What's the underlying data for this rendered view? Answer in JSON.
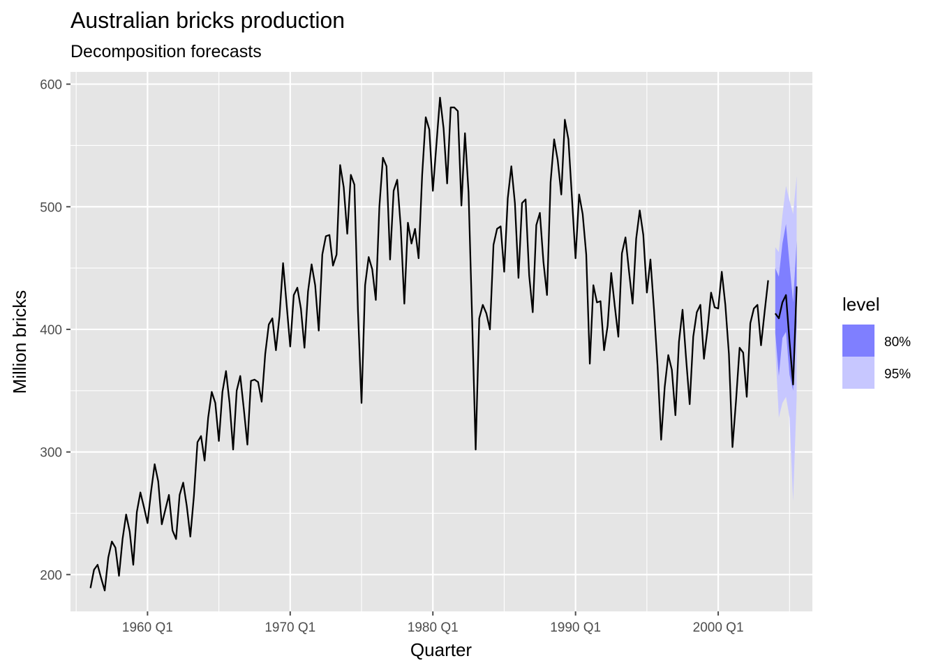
{
  "colors": {
    "panel": "#e5e5e5",
    "grid_major": "#ffffff",
    "line": "#000000",
    "band80": "#7f7fff",
    "band95": "#c7c7ff",
    "tick": "#4d4d4d"
  },
  "chart_data": {
    "type": "line",
    "title": "Australian bricks production",
    "subtitle": "Decomposition forecasts",
    "xlabel": "Quarter",
    "ylabel": "Million bricks",
    "xlim": [
      1954.6,
      2006.6
    ],
    "ylim": [
      170,
      610
    ],
    "x_ticks": [
      {
        "value": 1960,
        "label": "1960 Q1"
      },
      {
        "value": 1970,
        "label": "1970 Q1"
      },
      {
        "value": 1980,
        "label": "1980 Q1"
      },
      {
        "value": 1990,
        "label": "1990 Q1"
      },
      {
        "value": 2000,
        "label": "2000 Q1"
      }
    ],
    "y_ticks": [
      200,
      300,
      400,
      500,
      600
    ],
    "grid": true,
    "legend": {
      "title": "level",
      "position": "right",
      "items": [
        {
          "label": "80%",
          "color": "#7f7fff"
        },
        {
          "label": "95%",
          "color": "#c7c7ff"
        }
      ]
    },
    "series": [
      {
        "name": "",
        "start": 1956.0,
        "step": 0.25,
        "values": [
          189,
          204,
          208,
          197,
          187,
          214,
          227,
          222,
          199,
          229,
          249,
          235,
          208,
          251,
          267,
          255,
          242,
          268,
          290,
          276,
          241,
          253,
          265,
          236,
          229,
          265,
          275,
          256,
          231,
          264,
          308,
          313,
          293,
          328,
          349,
          340,
          309,
          349,
          366,
          340,
          302,
          350,
          362,
          335,
          306,
          358,
          359,
          357,
          341,
          380,
          404,
          409,
          383,
          411,
          454,
          420,
          386,
          428,
          434,
          417,
          385,
          431,
          453,
          436,
          399,
          461,
          476,
          477,
          452,
          461,
          534,
          516,
          478,
          526,
          518,
          415,
          340,
          436,
          459,
          449,
          424,
          500,
          540,
          533,
          457,
          513,
          522,
          483,
          421,
          487,
          470,
          482,
          458,
          526,
          573,
          563,
          513,
          551,
          589,
          564,
          519,
          581,
          581,
          578,
          501,
          560,
          512,
          409,
          302,
          409,
          420,
          413,
          400,
          469,
          482,
          484,
          447,
          507,
          533,
          503,
          442,
          503,
          506,
          444,
          414,
          485,
          495,
          455,
          428,
          520,
          555,
          538,
          510,
          571,
          555,
          507,
          458,
          510,
          494,
          461,
          372,
          436,
          422,
          423,
          383,
          403,
          446,
          419,
          394,
          462,
          475,
          447,
          421,
          474,
          497,
          477,
          430,
          457,
          416,
          370,
          310,
          353,
          379,
          367,
          330,
          390,
          416,
          376,
          339,
          394,
          414,
          420,
          376,
          400,
          430,
          418,
          417,
          447,
          420,
          380,
          304,
          342,
          385,
          381,
          345,
          405,
          417,
          420,
          387,
          414,
          440
        ]
      }
    ],
    "forecast": {
      "start": 2004.0,
      "step": 0.25,
      "mean": [
        413,
        409,
        422,
        428,
        390,
        355,
        435
      ],
      "lo80": [
        397,
        362,
        393,
        398,
        363,
        350,
        406
      ],
      "hi80": [
        450,
        443,
        470,
        486,
        453,
        422,
        472
      ],
      "lo95": [
        385,
        328,
        340,
        345,
        328,
        260,
        345
      ],
      "hi95": [
        467,
        463,
        493,
        517,
        505,
        494,
        525
      ]
    }
  }
}
